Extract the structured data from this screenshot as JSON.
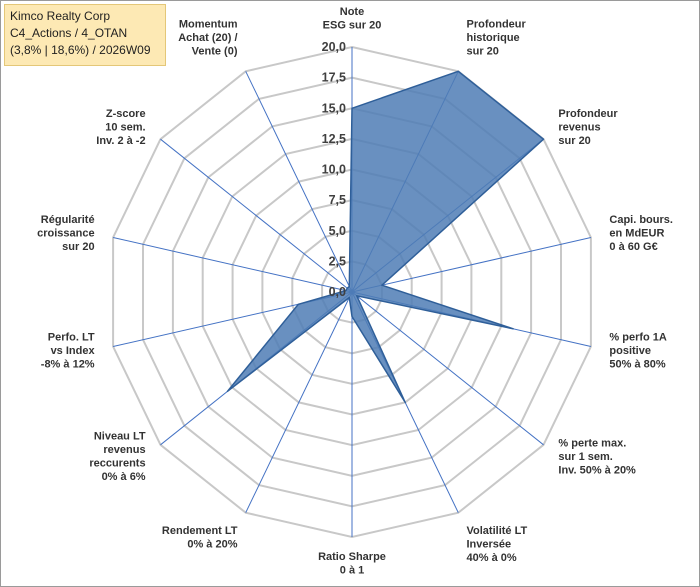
{
  "title_box": {
    "line1": "Kimco Realty Corp",
    "line2": "C4_Actions / 4_OTAN",
    "line3": "(3,8% | 18,6%) / 2026W09"
  },
  "chart_data": {
    "type": "radar",
    "rmin": 0,
    "rmax": 20,
    "tick_step": 2.5,
    "tick_labels": [
      "0,0",
      "2,5",
      "5,0",
      "7,5",
      "10,0",
      "12,5",
      "15,0",
      "17,5",
      "20,0"
    ],
    "grid": true,
    "legend": "none",
    "fill_color": "#4f7db5",
    "line_color": "#2f5f99",
    "grid_color": "#c8c8c8",
    "spoke_color": "#4472c4",
    "axes": [
      {
        "label": [
          "Note",
          "ESG sur 20"
        ],
        "value": 15.0
      },
      {
        "label": [
          "Profondeur",
          "historique",
          "sur 20"
        ],
        "value": 20.0
      },
      {
        "label": [
          "Profondeur",
          "revenus",
          "sur 20"
        ],
        "value": 20.0
      },
      {
        "label": [
          "Capi. bours.",
          "en MdEUR",
          "0 à 60 G€"
        ],
        "value": 2.5
      },
      {
        "label": [
          "% perfo 1A",
          "positive",
          "50% à 80%"
        ],
        "value": 13.5
      },
      {
        "label": [
          "% perte max.",
          "sur 1 sem.",
          "Inv. 50% à 20%"
        ],
        "value": 0.5
      },
      {
        "label": [
          "Volatilité LT",
          "Inversée",
          "40% à 0%"
        ],
        "value": 10.0
      },
      {
        "label": [
          "Ratio Sharpe",
          "0 à 1"
        ],
        "value": 2.0
      },
      {
        "label": [
          "Rendement LT",
          "0% à 20%"
        ],
        "value": 0.5
      },
      {
        "label": [
          "Niveau LT",
          "revenus",
          "reccurents",
          "0% à 6%"
        ],
        "value": 13.0
      },
      {
        "label": [
          "Perfo. LT",
          "vs Index",
          "-8% à 12%"
        ],
        "value": 4.5
      },
      {
        "label": [
          "Régularité",
          "croissance",
          "sur 20"
        ],
        "value": 0.5
      },
      {
        "label": [
          "Z-score",
          "10 sem.",
          "Inv. 2 à -2"
        ],
        "value": 0.5
      },
      {
        "label": [
          "Momentum",
          "Achat (20) /",
          "Vente (0)"
        ],
        "value": 0.5
      }
    ]
  }
}
